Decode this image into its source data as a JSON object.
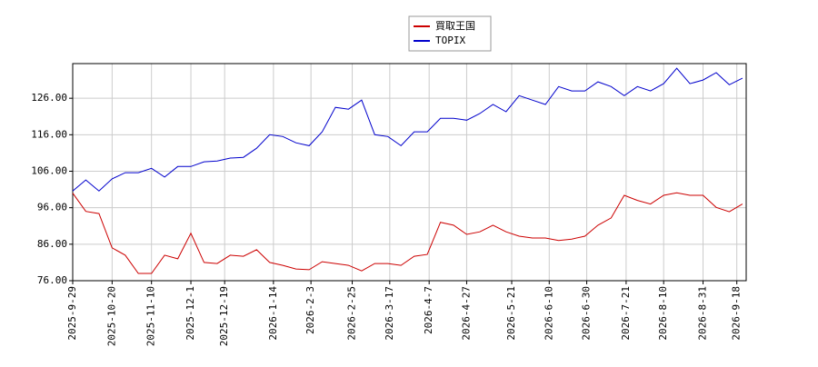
{
  "chart_data": {
    "type": "line",
    "x": [
      "2025-9-29",
      "2025-10-6",
      "2025-10-13",
      "2025-10-20",
      "2025-10-27",
      "2025-11-3",
      "2025-11-10",
      "2025-11-17",
      "2025-11-24",
      "2025-12-1",
      "2025-12-8",
      "2025-12-15",
      "2025-12-22",
      "2025-12-29",
      "2026-1-5",
      "2026-1-12",
      "2026-1-19",
      "2026-1-26",
      "2026-2-2",
      "2026-2-9",
      "2026-2-16",
      "2026-2-23",
      "2026-3-2",
      "2026-3-9",
      "2026-3-16",
      "2026-3-23",
      "2026-3-30",
      "2026-4-6",
      "2026-4-13",
      "2026-4-20",
      "2026-4-27",
      "2026-5-4",
      "2026-5-11",
      "2026-5-18",
      "2026-5-25",
      "2026-6-1",
      "2026-6-8",
      "2026-6-15",
      "2026-6-22",
      "2026-6-29",
      "2026-7-6",
      "2026-7-13",
      "2026-7-20",
      "2026-7-27",
      "2026-8-3",
      "2026-8-10",
      "2026-8-17",
      "2026-8-24",
      "2026-8-31",
      "2026-9-7",
      "2026-9-14",
      "2026-9-21"
    ],
    "series": [
      {
        "name": "買取王国",
        "color": "#cc0000",
        "values": [
          100,
          95,
          94.4,
          85,
          83,
          78,
          78,
          83,
          82,
          89,
          81,
          80.7,
          83,
          82.7,
          84.5,
          81,
          80.2,
          79.2,
          79,
          81.2,
          80.7,
          80.2,
          78.7,
          80.7,
          80.7,
          80.2,
          82.7,
          83.2,
          92,
          91.2,
          88.7,
          89.4,
          91.2,
          89.4,
          88.2,
          87.7,
          87.7,
          87,
          87.4,
          88.2,
          91.2,
          93.2,
          99.4,
          98,
          97,
          99.4,
          100.1,
          99.4,
          99.4,
          96.1,
          94.9,
          97
        ]
      },
      {
        "name": "TOPIX",
        "color": "#0000cc",
        "values": [
          100.6,
          103.6,
          100.6,
          103.9,
          105.6,
          105.6,
          106.8,
          104.4,
          107.3,
          107.3,
          108.6,
          108.8,
          109.6,
          109.8,
          112.3,
          116,
          115.5,
          113.8,
          113,
          116.8,
          123.5,
          123,
          125.5,
          116,
          115.5,
          113,
          116.8,
          116.8,
          120.5,
          120.5,
          120,
          121.8,
          124.3,
          122.3,
          126.7,
          125.5,
          124.3,
          129.2,
          128,
          128,
          130.5,
          129.2,
          126.7,
          129.2,
          128,
          130,
          134.2,
          130,
          131,
          133,
          129.7,
          131.5
        ]
      }
    ],
    "xlim": [
      "2025-9-29",
      "2026-9-23"
    ],
    "xticks": [
      "2025-9-29",
      "2025-10-20",
      "2025-11-10",
      "2025-12-1",
      "2025-12-19",
      "2026-1-14",
      "2026-2-3",
      "2026-2-25",
      "2026-3-17",
      "2026-4-7",
      "2026-4-27",
      "2026-5-21",
      "2026-6-10",
      "2026-6-30",
      "2026-7-21",
      "2026-8-10",
      "2026-8-31",
      "2026-9-18"
    ],
    "ylim": [
      76,
      135.5
    ],
    "yticks": [
      {
        "value": 76,
        "label": "76.00"
      },
      {
        "value": 86,
        "label": "86.00"
      },
      {
        "value": 96,
        "label": "96.00"
      },
      {
        "value": 106,
        "label": "106.00"
      },
      {
        "value": 116,
        "label": "116.00"
      },
      {
        "value": 126,
        "label": "126.00"
      }
    ],
    "grid": true,
    "legend": "top"
  }
}
